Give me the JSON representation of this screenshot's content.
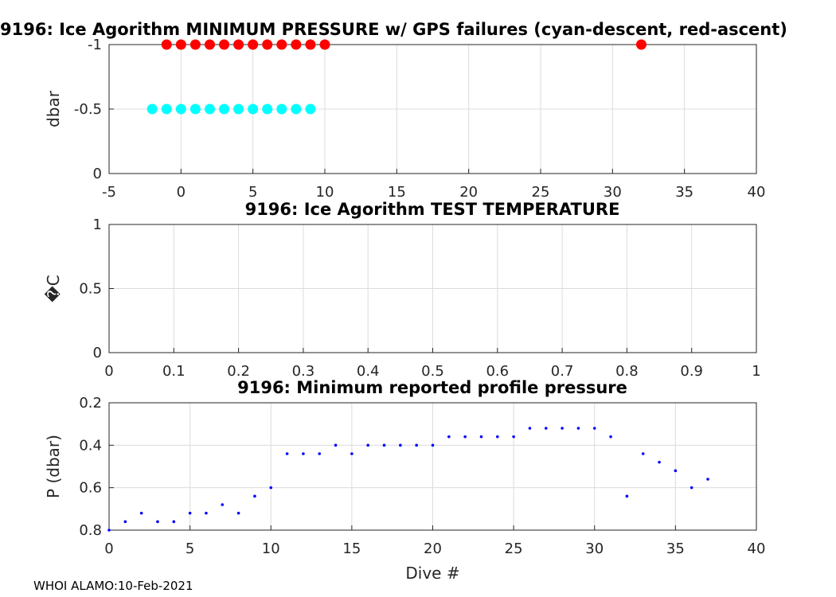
{
  "footer": "WHOI ALAMO:10-Feb-2021",
  "chart_data": [
    {
      "type": "scatter",
      "title": "9196: Ice Agorithm MINIMUM PRESSURE w/ GPS failures (cyan-descent, red-ascent)",
      "xlabel": "",
      "ylabel": "dbar",
      "xlim": [
        -5,
        40
      ],
      "ylim": [
        0,
        -1
      ],
      "y_reversed": true,
      "grid": true,
      "xticks": [
        "-5",
        "0",
        "5",
        "10",
        "15",
        "20",
        "25",
        "30",
        "35",
        "40"
      ],
      "yticks": [
        "-1",
        "-0.5",
        "0"
      ],
      "series": [
        {
          "color": "#ff0000",
          "marker": "filled-circle",
          "x": [
            -1,
            0,
            1,
            2,
            3,
            4,
            5,
            6,
            7,
            8,
            9,
            10,
            32
          ],
          "y": [
            -1,
            -1,
            -1,
            -1,
            -1,
            -1,
            -1,
            -1,
            -1,
            -1,
            -1,
            -1,
            -1
          ]
        },
        {
          "color": "#00ffff",
          "marker": "filled-circle",
          "x": [
            -2,
            -1,
            0,
            1,
            2,
            3,
            4,
            5,
            6,
            7,
            8,
            9
          ],
          "y": [
            -0.5,
            -0.5,
            -0.5,
            -0.5,
            -0.5,
            -0.5,
            -0.5,
            -0.5,
            -0.5,
            -0.5,
            -0.5,
            -0.5
          ]
        }
      ]
    },
    {
      "type": "scatter",
      "title": "9196: Ice Agorithm TEST TEMPERATURE",
      "xlabel": "",
      "ylabel": "�C",
      "xlim": [
        0,
        1
      ],
      "ylim": [
        0,
        1
      ],
      "y_reversed": false,
      "grid": true,
      "xticks": [
        "0",
        "0.1",
        "0.2",
        "0.3",
        "0.4",
        "0.5",
        "0.6",
        "0.7",
        "0.8",
        "0.9",
        "1"
      ],
      "yticks": [
        "1",
        "0.5",
        "0"
      ],
      "series": []
    },
    {
      "type": "scatter",
      "title": "9196: Minimum reported profile pressure",
      "xlabel": "Dive #",
      "ylabel": "P (dbar)",
      "xlim": [
        0,
        40
      ],
      "ylim": [
        0.2,
        0.8
      ],
      "y_reversed": true,
      "grid": true,
      "xticks": [
        "0",
        "5",
        "10",
        "15",
        "20",
        "25",
        "30",
        "35",
        "40"
      ],
      "yticks": [
        "0.2",
        "0.4",
        "0.6",
        "0.8"
      ],
      "series": [
        {
          "color": "#0000ff",
          "marker": "dot",
          "x": [
            0,
            1,
            2,
            3,
            4,
            5,
            6,
            7,
            8,
            9,
            10,
            11,
            12,
            13,
            14,
            15,
            16,
            17,
            18,
            19,
            20,
            21,
            22,
            23,
            24,
            25,
            26,
            27,
            28,
            29,
            30,
            31,
            32,
            33,
            34,
            35,
            36,
            37
          ],
          "y": [
            0.8,
            0.76,
            0.72,
            0.76,
            0.76,
            0.72,
            0.72,
            0.68,
            0.72,
            0.64,
            0.6,
            0.44,
            0.44,
            0.44,
            0.4,
            0.44,
            0.4,
            0.4,
            0.4,
            0.4,
            0.4,
            0.36,
            0.36,
            0.36,
            0.36,
            0.36,
            0.32,
            0.32,
            0.32,
            0.32,
            0.32,
            0.36,
            0.64,
            0.44,
            0.48,
            0.52,
            0.6,
            0.56
          ]
        }
      ]
    }
  ]
}
